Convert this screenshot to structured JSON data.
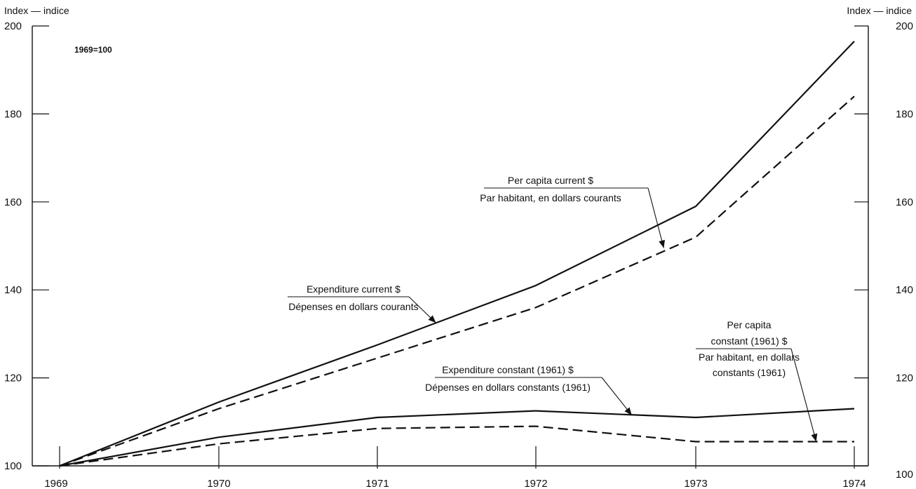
{
  "chart_data": {
    "type": "line",
    "x": [
      1969,
      1970,
      1971,
      1972,
      1973,
      1974
    ],
    "x_tick_labels": [
      "1969",
      "1970",
      "1971",
      "1972",
      "1973",
      "1974"
    ],
    "ylim": [
      100,
      200
    ],
    "y_ticks_left": [
      100,
      120,
      140,
      160,
      180,
      200
    ],
    "y_ticks_right": [
      100,
      120,
      140,
      160,
      180,
      200
    ],
    "y_tick_labels_left": [
      "100",
      "120",
      "140",
      "160",
      "180",
      "200"
    ],
    "y_tick_labels_right": [
      "100",
      "120",
      "140",
      "160",
      "180",
      "200"
    ],
    "left_axis_label": "Index — indice",
    "right_axis_label": "Index — indice",
    "base_note": "1969=100",
    "grid": false,
    "series": [
      {
        "name": "Expenditure current $ / Dépenses en dollars courants",
        "style": "solid",
        "values": [
          100,
          114.5,
          127.5,
          141,
          159,
          196.5
        ]
      },
      {
        "name": "Per capita current $ / Par habitant, en dollars courants",
        "style": "dashed",
        "values": [
          100,
          113,
          124.5,
          136,
          152,
          184
        ]
      },
      {
        "name": "Expenditure constant (1961) $ / Dépenses en dollars constants (1961)",
        "style": "solid",
        "values": [
          100,
          106.5,
          111,
          112.5,
          111,
          113
        ]
      },
      {
        "name": "Per capita constant (1961) $ / Par habitant, en dollars constants (1961)",
        "style": "dashed",
        "values": [
          100,
          105,
          108.5,
          109,
          105.5,
          105.5
        ]
      }
    ],
    "annotations": [
      {
        "series_index": 1,
        "lines": [
          "Per capita current $",
          "Par habitant, en dollars courants"
        ],
        "point": {
          "x": 1972.8,
          "y": 149.5
        }
      },
      {
        "series_index": 0,
        "lines": [
          "Expenditure current $",
          "Dépenses en dollars courants"
        ],
        "point": {
          "x": 1971.37,
          "y": 132.5
        }
      },
      {
        "series_index": 3,
        "lines": [
          "Per capita",
          "constant (1961) $",
          "Par habitant, en dollars",
          "constants (1961)"
        ],
        "point": {
          "x": 1973.76,
          "y": 105.5
        }
      },
      {
        "series_index": 2,
        "lines": [
          "Expenditure constant (1961) $",
          "Dépenses en dollars constants (1961)"
        ],
        "point": {
          "x": 1972.6,
          "y": 111.5
        }
      }
    ],
    "colors": {
      "ink": "#111111",
      "background": "#ffffff"
    }
  }
}
